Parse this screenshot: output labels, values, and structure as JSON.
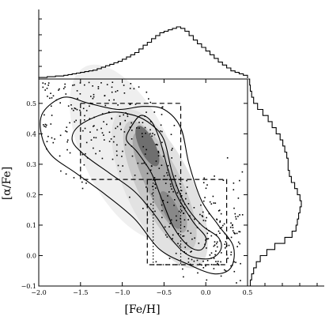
{
  "chart_data": {
    "type": "scatter",
    "title": "",
    "xlabel": "[Fe/H]",
    "ylabel": "[α/Fe]",
    "xlim": [
      -2.0,
      0.5
    ],
    "ylim": [
      -0.1,
      0.58
    ],
    "x_ticks": [
      {
        "value": -2.0,
        "label": "−2.0"
      },
      {
        "value": -1.5,
        "label": "−1.5"
      },
      {
        "value": -1.0,
        "label": "−1.0"
      },
      {
        "value": -0.5,
        "label": "−0.5"
      },
      {
        "value": 0.0,
        "label": "0.0"
      },
      {
        "value": 0.5,
        "label": "0.5"
      }
    ],
    "y_ticks": [
      {
        "value": -0.1,
        "label": "−0.1"
      },
      {
        "value": 0.0,
        "label": "0.0"
      },
      {
        "value": 0.1,
        "label": "0.1"
      },
      {
        "value": 0.2,
        "label": "0.2"
      },
      {
        "value": 0.3,
        "label": "0.3"
      },
      {
        "value": 0.4,
        "label": "0.4"
      },
      {
        "value": 0.5,
        "label": "0.5"
      }
    ],
    "density_ridge": [
      {
        "x": -0.75,
        "y": 0.42
      },
      {
        "x": -0.62,
        "y": 0.34
      },
      {
        "x": -0.5,
        "y": 0.25
      },
      {
        "x": -0.38,
        "y": 0.16
      },
      {
        "x": -0.25,
        "y": 0.08
      },
      {
        "x": -0.1,
        "y": 0.05
      }
    ],
    "contours": [
      {
        "level": "outer",
        "points": [
          [
            -1.95,
            0.47
          ],
          [
            -1.7,
            0.52
          ],
          [
            -1.4,
            0.5
          ],
          [
            -1.05,
            0.48
          ],
          [
            -0.75,
            0.49
          ],
          [
            -0.5,
            0.48
          ],
          [
            -0.3,
            0.42
          ],
          [
            -0.2,
            0.3
          ],
          [
            -0.05,
            0.18
          ],
          [
            0.15,
            0.1
          ],
          [
            0.33,
            0.03
          ],
          [
            0.3,
            -0.04
          ],
          [
            0.1,
            -0.06
          ],
          [
            -0.2,
            -0.03
          ],
          [
            -0.55,
            0.02
          ],
          [
            -0.85,
            0.12
          ],
          [
            -1.2,
            0.2
          ],
          [
            -1.55,
            0.27
          ],
          [
            -1.85,
            0.33
          ],
          [
            -1.97,
            0.4
          ]
        ]
      },
      {
        "level": "middle",
        "points": [
          [
            -1.5,
            0.43
          ],
          [
            -1.15,
            0.47
          ],
          [
            -0.85,
            0.46
          ],
          [
            -0.65,
            0.43
          ],
          [
            -0.5,
            0.38
          ],
          [
            -0.4,
            0.27
          ],
          [
            -0.25,
            0.17
          ],
          [
            -0.05,
            0.1
          ],
          [
            0.15,
            0.06
          ],
          [
            0.18,
            0.02
          ],
          [
            0.05,
            -0.01
          ],
          [
            -0.2,
            0.0
          ],
          [
            -0.4,
            0.05
          ],
          [
            -0.6,
            0.13
          ],
          [
            -0.85,
            0.21
          ],
          [
            -1.15,
            0.27
          ],
          [
            -1.45,
            0.33
          ],
          [
            -1.6,
            0.38
          ]
        ]
      },
      {
        "level": "inner",
        "points": [
          [
            -0.9,
            0.42
          ],
          [
            -0.78,
            0.46
          ],
          [
            -0.65,
            0.44
          ],
          [
            -0.55,
            0.38
          ],
          [
            -0.45,
            0.28
          ],
          [
            -0.35,
            0.2
          ],
          [
            -0.15,
            0.11
          ],
          [
            0.0,
            0.06
          ],
          [
            -0.05,
            0.02
          ],
          [
            -0.2,
            0.03
          ],
          [
            -0.38,
            0.09
          ],
          [
            -0.52,
            0.18
          ],
          [
            -0.65,
            0.27
          ],
          [
            -0.82,
            0.34
          ],
          [
            -0.95,
            0.38
          ]
        ]
      }
    ],
    "selection_boxes": [
      {
        "x0": -1.5,
        "x1": -0.3,
        "y0": 0.25,
        "y1": 0.5,
        "style": "dashed"
      },
      {
        "x0": -0.7,
        "x1": 0.25,
        "y0": -0.03,
        "y1": 0.25,
        "style": "dashed"
      },
      {
        "x0": -0.63,
        "x1": -0.3,
        "y0": -0.03,
        "y1": 0.25,
        "style": "dotted"
      }
    ],
    "top_histogram": {
      "xlabel": "[Fe/H]",
      "bins_start": -2.0,
      "bin_width": 0.05,
      "counts": [
        1,
        1,
        2,
        2,
        3,
        3,
        4,
        5,
        6,
        7,
        8,
        9,
        10,
        11,
        13,
        15,
        17,
        19,
        21,
        23,
        26,
        29,
        32,
        35,
        40,
        45,
        49,
        54,
        58,
        62,
        64,
        66,
        68,
        70,
        68,
        64,
        58,
        52,
        47,
        42,
        37,
        32,
        27,
        22,
        18,
        14,
        10,
        8,
        6,
        4
      ]
    },
    "right_histogram": {
      "ylabel": "[α/Fe]",
      "bins_start": -0.1,
      "bin_width": 0.02,
      "counts": [
        3,
        5,
        8,
        12,
        18,
        28,
        40,
        55,
        66,
        72,
        74,
        76,
        78,
        80,
        78,
        74,
        70,
        65,
        62,
        60,
        60,
        58,
        55,
        52,
        48,
        42,
        36,
        30,
        22,
        14,
        8,
        5,
        3,
        2
      ]
    }
  }
}
